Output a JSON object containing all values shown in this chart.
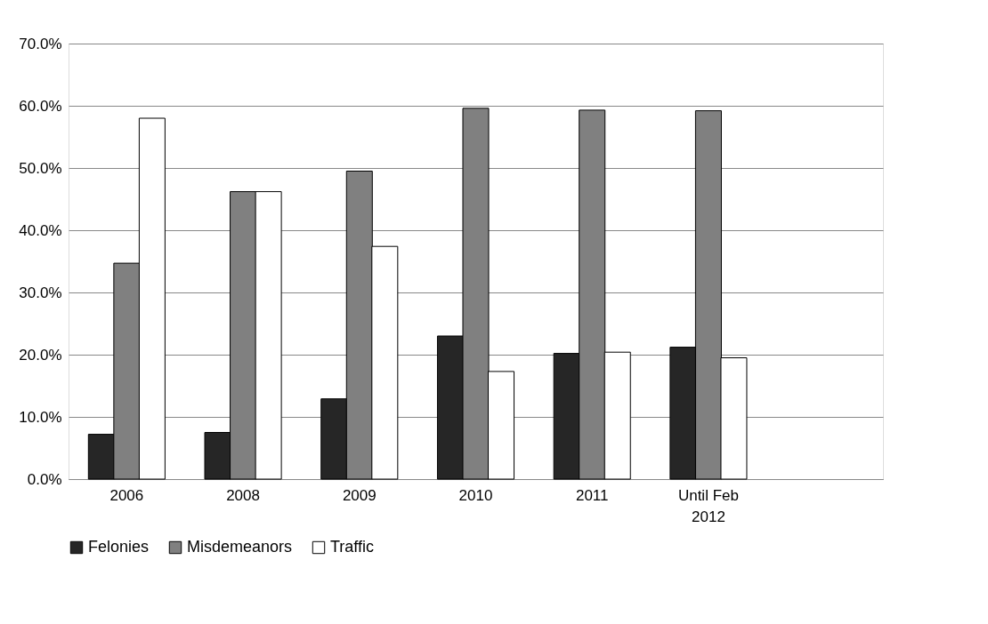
{
  "chart_data": {
    "type": "bar",
    "categories": [
      "2006",
      "2008",
      "2009",
      "2010",
      "2011",
      "Until Feb 2012",
      null
    ],
    "series": [
      {
        "name": "Felonies",
        "color": "#262626",
        "values": [
          7.2,
          7.5,
          12.9,
          23.0,
          20.2,
          21.2,
          null
        ]
      },
      {
        "name": "Misdemeanors",
        "color": "#808080",
        "values": [
          34.7,
          46.2,
          49.5,
          59.6,
          59.3,
          59.2,
          null
        ]
      },
      {
        "name": "Traffic",
        "color": "#ffffff",
        "values": [
          58.0,
          46.2,
          37.4,
          17.3,
          20.4,
          19.5,
          null
        ]
      }
    ],
    "ylim": [
      0,
      70
    ],
    "yticks": [
      {
        "value": 0,
        "label": "0.0%"
      },
      {
        "value": 10,
        "label": "10.0%"
      },
      {
        "value": 20,
        "label": "20.0%"
      },
      {
        "value": 30,
        "label": "30.0%"
      },
      {
        "value": 40,
        "label": "40.0%"
      },
      {
        "value": 50,
        "label": "50.0%"
      },
      {
        "value": 60,
        "label": "60.0%"
      },
      {
        "value": 70,
        "label": "70.0%"
      }
    ],
    "grid": "y",
    "legend": "bottom"
  }
}
